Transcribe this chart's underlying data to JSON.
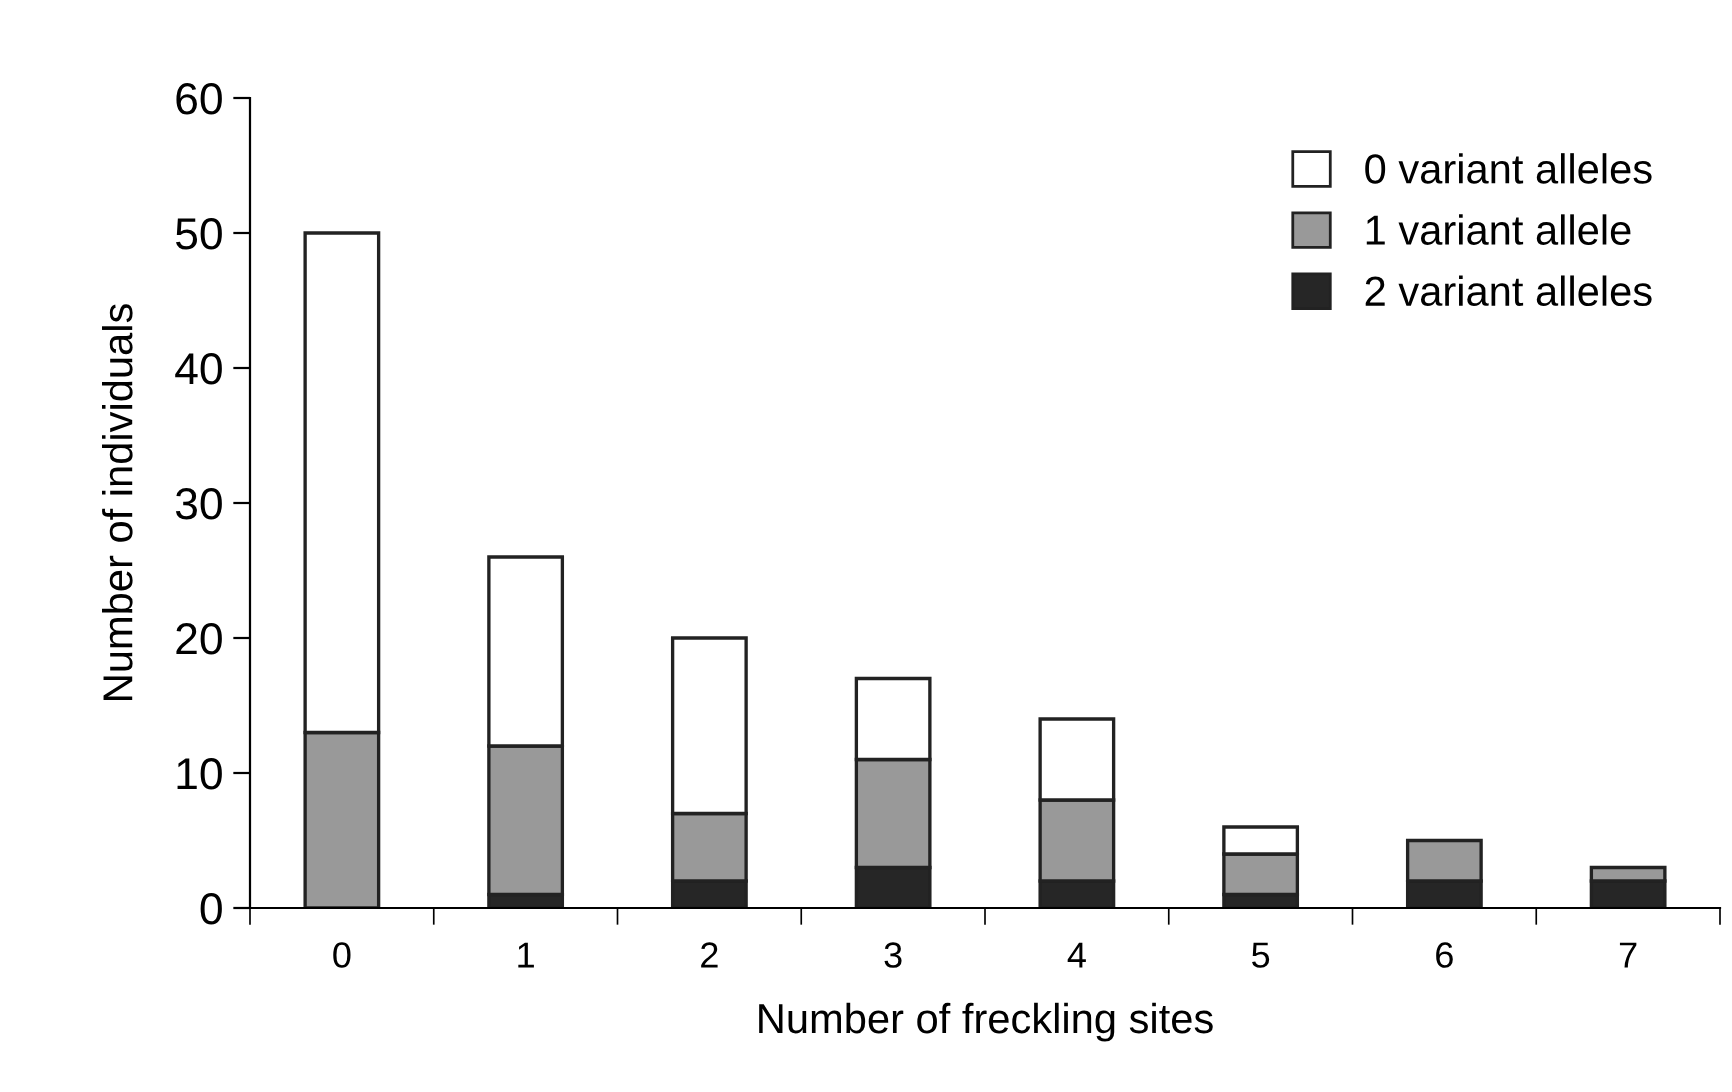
{
  "chart_data": {
    "type": "bar",
    "stacked": true,
    "xlabel": "Number of freckling sites",
    "ylabel": "Number of individuals",
    "categories": [
      "0",
      "1",
      "2",
      "3",
      "4",
      "5",
      "6",
      "7"
    ],
    "series": [
      {
        "name": "2 variant alleles",
        "color": "#262626",
        "values": [
          0,
          1,
          2,
          3,
          2,
          1,
          2,
          2
        ]
      },
      {
        "name": "1 variant allele",
        "color": "#999999",
        "values": [
          13,
          11,
          5,
          8,
          6,
          3,
          3,
          1
        ]
      },
      {
        "name": "0 variant alleles",
        "color": "#ffffff",
        "values": [
          37,
          14,
          13,
          6,
          6,
          2,
          null,
          null
        ]
      }
    ],
    "ylim": [
      0,
      60
    ],
    "yticks": [
      0,
      10,
      20,
      30,
      40,
      50,
      60
    ],
    "grid": false,
    "legend": "top right"
  }
}
